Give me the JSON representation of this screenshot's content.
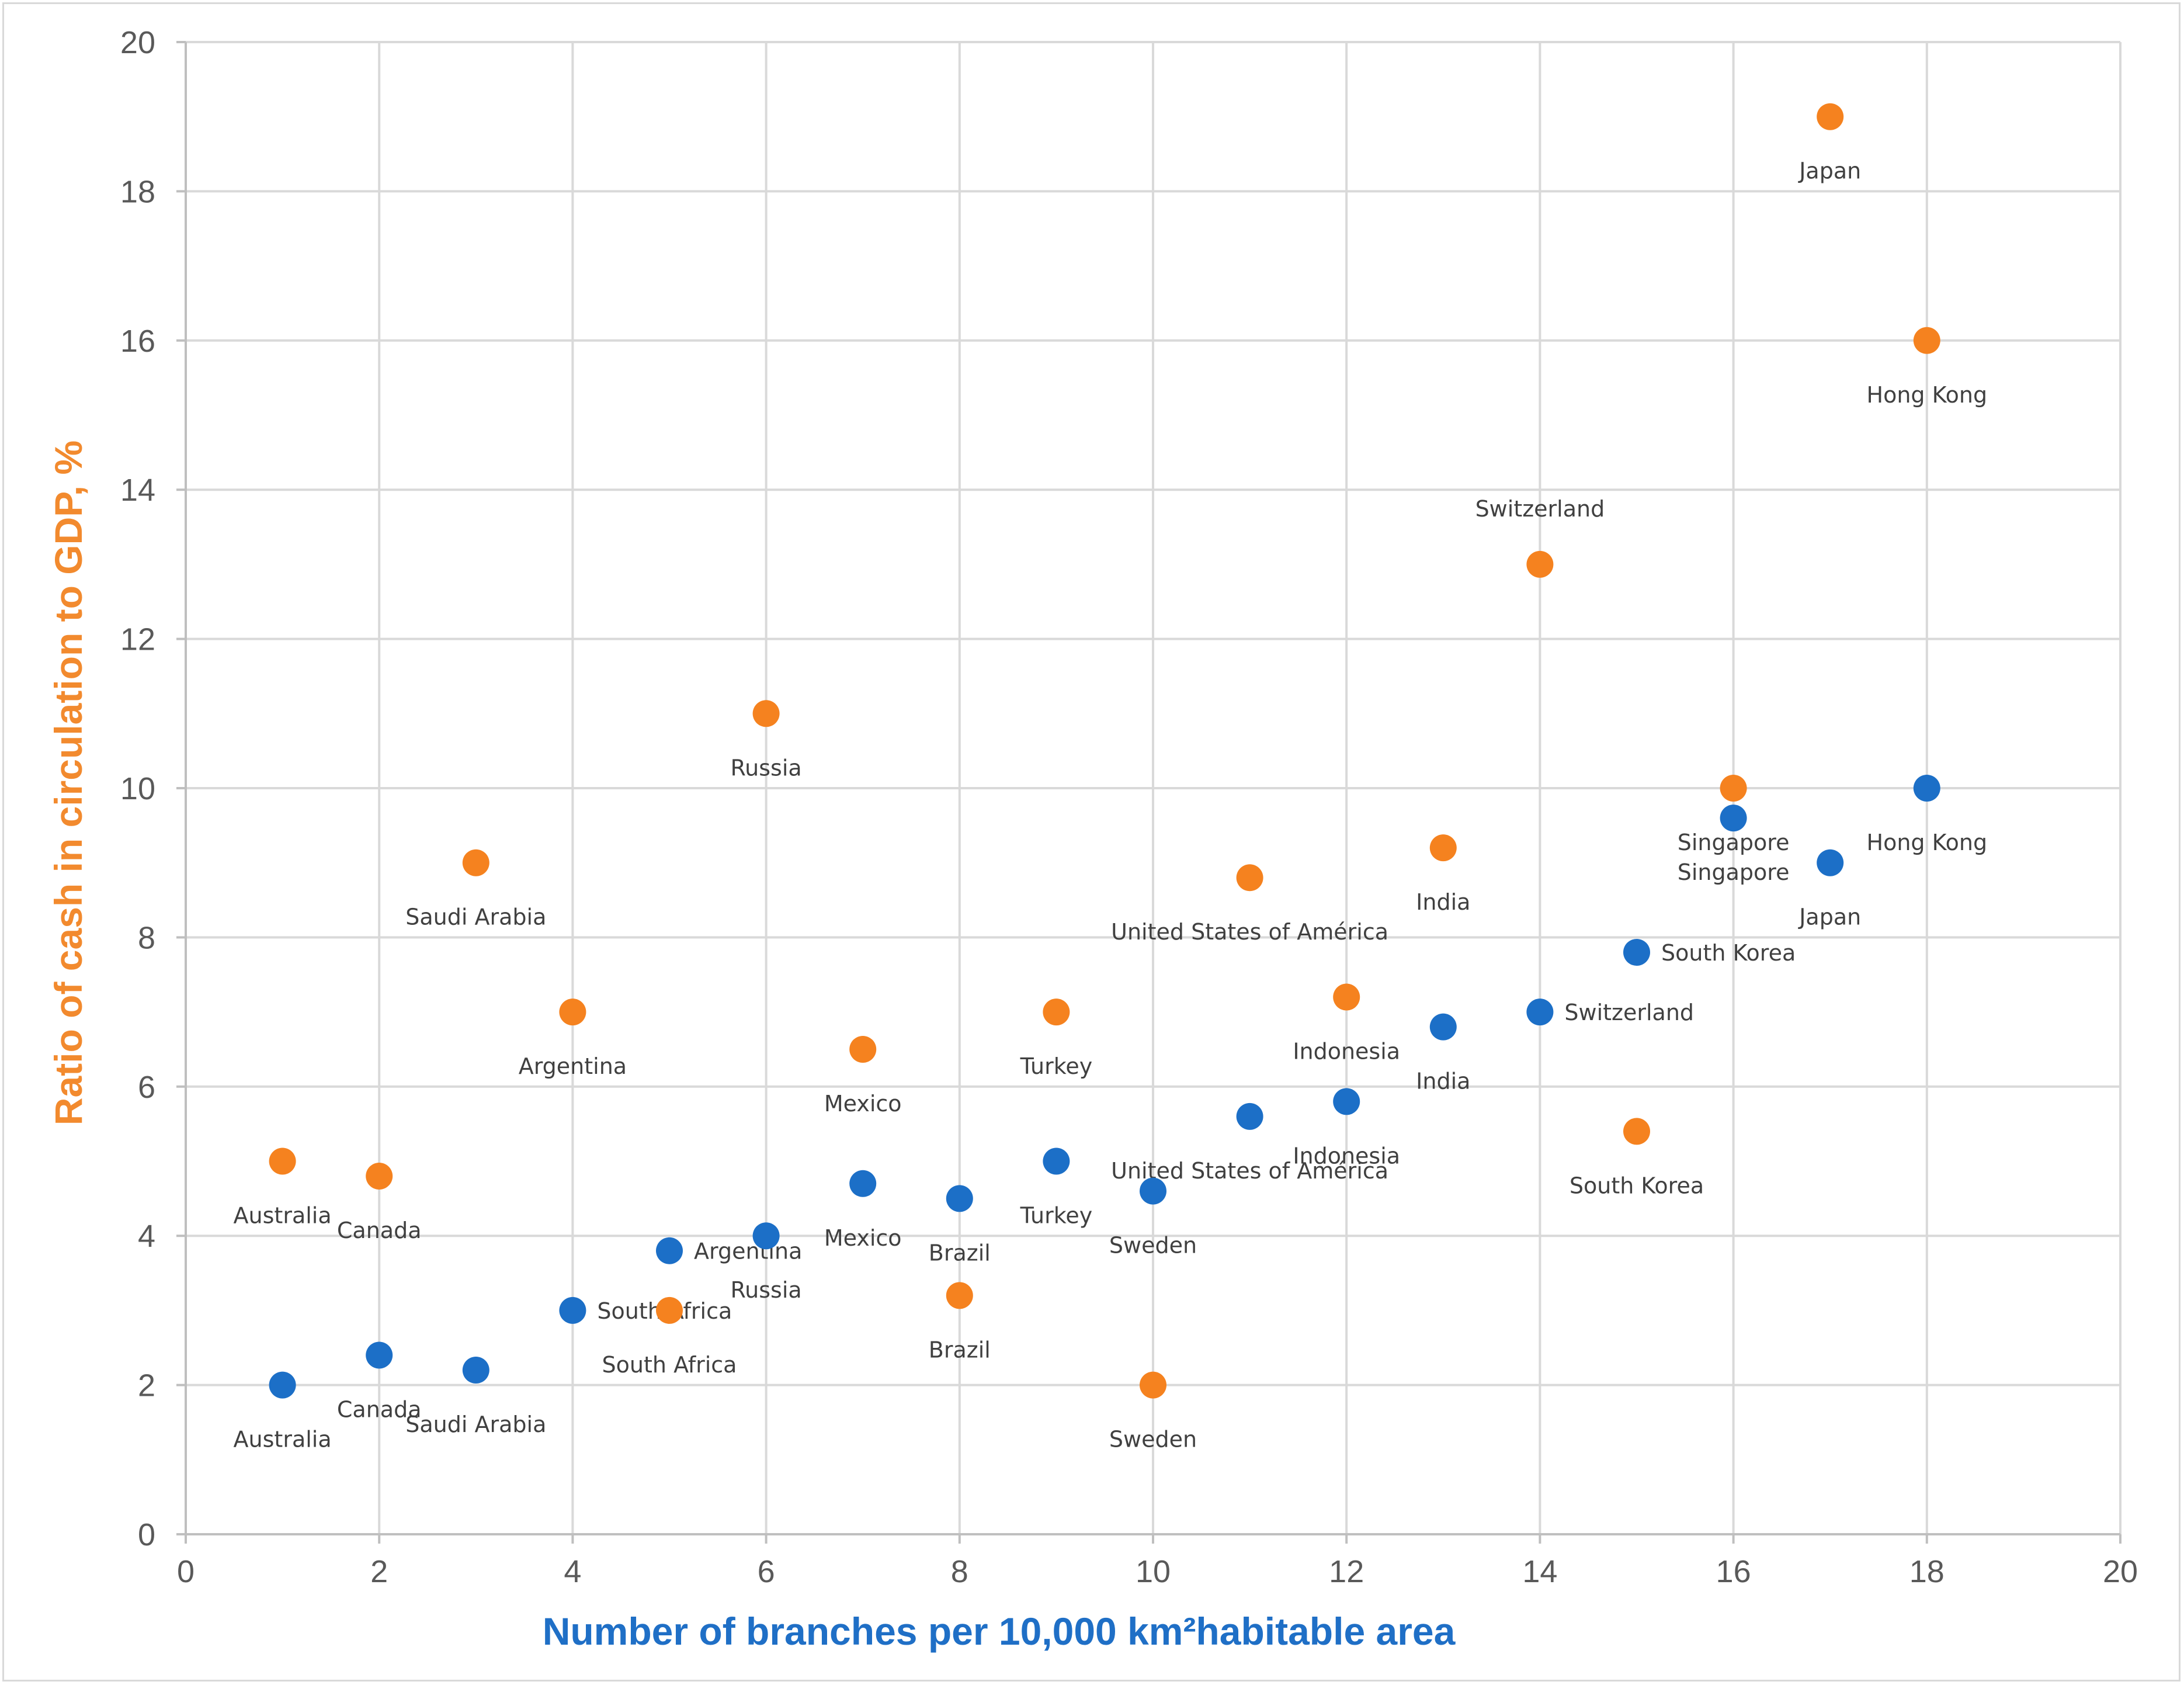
{
  "chart_data": {
    "type": "scatter",
    "title": "",
    "xlabel": "Number of branches per 10,000 km²habitable area",
    "ylabel": "Ratio of cash in circulation to GDP, %",
    "xlim": [
      0,
      20
    ],
    "ylim": [
      0,
      20
    ],
    "xticks": [
      "0",
      "2",
      "4",
      "6",
      "8",
      "10",
      "12",
      "14",
      "16",
      "18",
      "20"
    ],
    "yticks": [
      "0",
      "2",
      "4",
      "6",
      "8",
      "10",
      "12",
      "14",
      "16",
      "18",
      "20"
    ],
    "grid": true,
    "colors": {
      "orange": "#f5821f",
      "blue": "#1c6fc7",
      "x_title": "#1f6fc6",
      "y_title": "#f28a2e"
    },
    "series": [
      {
        "name": "Ratio of cash in circulation to GDP",
        "color": "#f5821f",
        "points": [
          {
            "label": "Australia",
            "x": 1,
            "y": 5
          },
          {
            "label": "Canada",
            "x": 2,
            "y": 4.8
          },
          {
            "label": "Saudi Arabia",
            "x": 3,
            "y": 9
          },
          {
            "label": "Argentina",
            "x": 4,
            "y": 7
          },
          {
            "label": "South Africa",
            "x": 5,
            "y": 3
          },
          {
            "label": "Russia",
            "x": 6,
            "y": 11
          },
          {
            "label": "Mexico",
            "x": 7,
            "y": 6.5
          },
          {
            "label": "Brazil",
            "x": 8,
            "y": 3.2
          },
          {
            "label": "Turkey",
            "x": 9,
            "y": 7
          },
          {
            "label": "Sweden",
            "x": 10,
            "y": 2
          },
          {
            "label": "United States of América",
            "x": 11,
            "y": 8.8
          },
          {
            "label": "Indonesia",
            "x": 12,
            "y": 7.2
          },
          {
            "label": "India",
            "x": 13,
            "y": 9.2
          },
          {
            "label": "Switzerland",
            "x": 14,
            "y": 13
          },
          {
            "label": "South Korea",
            "x": 15,
            "y": 5.4
          },
          {
            "label": "Singapore",
            "x": 16,
            "y": 10
          },
          {
            "label": "Japan",
            "x": 17,
            "y": 19
          },
          {
            "label": "Hong Kong",
            "x": 18,
            "y": 16
          }
        ]
      },
      {
        "name": "Number of branches per 10,000 km² habitable area",
        "color": "#1c6fc7",
        "points": [
          {
            "label": "Australia",
            "x": 1,
            "y": 2
          },
          {
            "label": "Canada",
            "x": 2,
            "y": 2.4
          },
          {
            "label": "Saudi Arabia",
            "x": 3,
            "y": 2.2
          },
          {
            "label": "South Africa",
            "x": 4,
            "y": 3
          },
          {
            "label": "Argentina",
            "x": 5,
            "y": 3.8
          },
          {
            "label": "Russia",
            "x": 6,
            "y": 4
          },
          {
            "label": "Mexico",
            "x": 7,
            "y": 4.7
          },
          {
            "label": "Brazil",
            "x": 8,
            "y": 4.5
          },
          {
            "label": "Turkey",
            "x": 9,
            "y": 5
          },
          {
            "label": "Sweden",
            "x": 10,
            "y": 4.6
          },
          {
            "label": "United States of América",
            "x": 11,
            "y": 5.6
          },
          {
            "label": "Indonesia",
            "x": 12,
            "y": 5.8
          },
          {
            "label": "India",
            "x": 13,
            "y": 6.8
          },
          {
            "label": "Switzerland",
            "x": 14,
            "y": 7
          },
          {
            "label": "South Korea",
            "x": 15,
            "y": 7.8
          },
          {
            "label": "Singapore",
            "x": 16,
            "y": 9.6
          },
          {
            "label": "Japan",
            "x": 17,
            "y": 9
          },
          {
            "label": "Hong Kong",
            "x": 18,
            "y": 10
          }
        ]
      }
    ]
  }
}
